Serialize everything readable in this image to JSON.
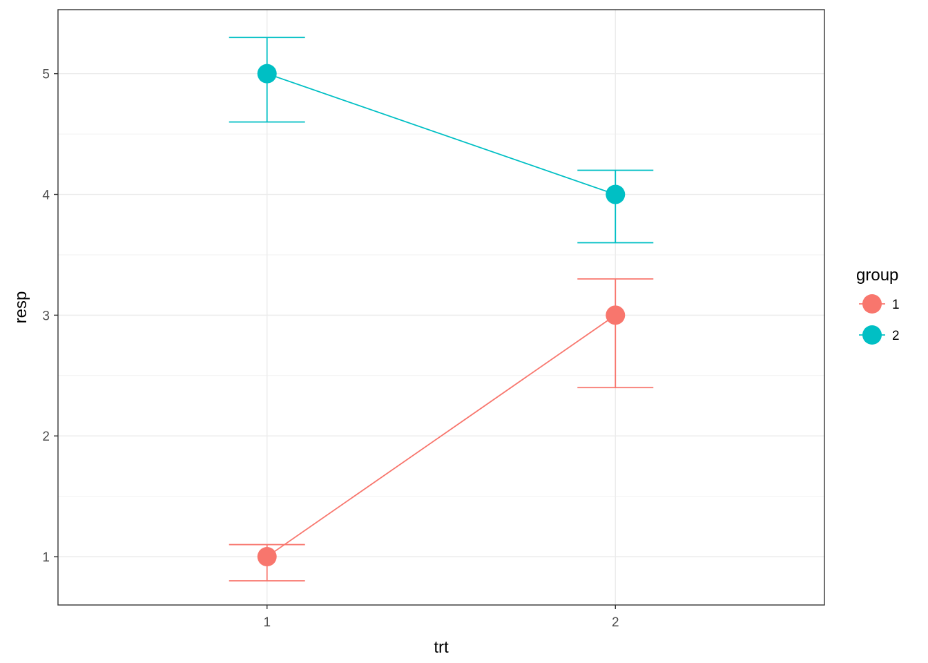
{
  "chart_data": {
    "type": "line",
    "xlabel": "trt",
    "ylabel": "resp",
    "categories": [
      "1",
      "2"
    ],
    "xlim": [
      0.4,
      2.6
    ],
    "ylim": [
      0.6,
      5.53
    ],
    "y_ticks": [
      1,
      2,
      3,
      4,
      5
    ],
    "y_minor_ticks": [
      1.5,
      2.5,
      3.5,
      4.5
    ],
    "grid": true,
    "legend": {
      "title": "group",
      "position": "right",
      "entries": [
        "1",
        "2"
      ]
    },
    "series": [
      {
        "name": "1",
        "color": "#F8766D",
        "values": [
          1,
          3
        ],
        "lower": [
          0.8,
          2.4
        ],
        "upper": [
          1.1,
          3.3
        ]
      },
      {
        "name": "2",
        "color": "#00BFC4",
        "values": [
          5,
          4
        ],
        "lower": [
          4.6,
          3.6
        ],
        "upper": [
          5.3,
          4.2
        ]
      }
    ]
  }
}
